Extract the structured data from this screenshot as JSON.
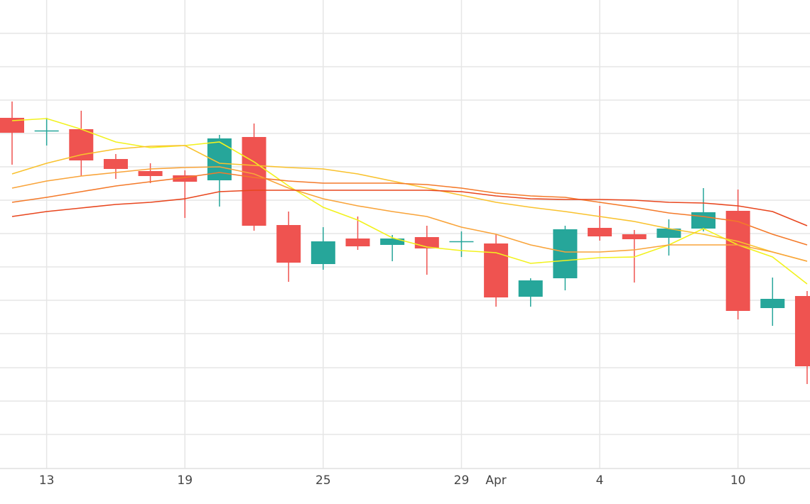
{
  "chart_data": {
    "type": "candlestick",
    "categories": [
      null,
      "13",
      null,
      null,
      null,
      "19",
      null,
      null,
      null,
      "25",
      null,
      null,
      null,
      "29",
      "Apr",
      null,
      null,
      "4",
      null,
      null,
      null,
      "10",
      null,
      null
    ],
    "open": [
      494,
      475,
      478,
      436,
      419,
      413,
      406,
      467,
      343,
      288,
      324,
      315,
      326,
      319,
      317,
      242,
      268,
      339,
      330,
      325,
      338,
      363,
      226,
      243
    ],
    "high": [
      517,
      494,
      504,
      443,
      430,
      420,
      470,
      486,
      362,
      340,
      355,
      329,
      342,
      334,
      330,
      268,
      342,
      370,
      336,
      351,
      395,
      393,
      269,
      250
    ],
    "low": [
      428,
      455,
      412,
      408,
      402,
      353,
      369,
      335,
      263,
      280,
      308,
      292,
      273,
      298,
      228,
      228,
      251,
      321,
      262,
      300,
      334,
      210,
      201,
      119
    ],
    "close": [
      473,
      476,
      434,
      422,
      412,
      404,
      465,
      342,
      290,
      320,
      313,
      324,
      310,
      320,
      241,
      265,
      337,
      327,
      323,
      338,
      361,
      222,
      239,
      144
    ],
    "up_color": "#26a69a",
    "down_color": "#ef5350",
    "lines": [
      {
        "color": "#f2f21e",
        "values": [
          490,
          493,
          478,
          460,
          452,
          455,
          460,
          432,
          398,
          368,
          350,
          325,
          312,
          307,
          304,
          289,
          293,
          297,
          298,
          315,
          338,
          315,
          298,
          260
        ]
      },
      {
        "color": "#f9c22e",
        "values": [
          415,
          430,
          442,
          450,
          454,
          455,
          430,
          427,
          424,
          422,
          415,
          405,
          395,
          385,
          375,
          368,
          362,
          355,
          348,
          338,
          330,
          320,
          305,
          292
        ]
      },
      {
        "color": "#f9a43a",
        "values": [
          395,
          405,
          412,
          417,
          422,
          424,
          425,
          415,
          395,
          380,
          370,
          362,
          355,
          340,
          330,
          315,
          305,
          305,
          308,
          315,
          315,
          315,
          305,
          292
        ]
      },
      {
        "color": "#f47a2a",
        "values": [
          375,
          382,
          390,
          398,
          404,
          410,
          417,
          410,
          405,
          402,
          402,
          402,
          400,
          395,
          388,
          384,
          382,
          375,
          368,
          360,
          355,
          348,
          330,
          315
        ]
      },
      {
        "color": "#e8461e",
        "values": [
          355,
          362,
          367,
          372,
          375,
          380,
          390,
          392,
          392,
          392,
          392,
          392,
          392,
          390,
          384,
          380,
          379,
          379,
          378,
          375,
          374,
          370,
          362,
          342
        ]
      }
    ],
    "ylim": [
      0,
      660
    ],
    "ygrid": [
      48,
      95,
      142,
      190,
      237,
      284,
      331,
      378,
      425,
      472,
      519,
      566,
      613
    ],
    "grid": true
  }
}
